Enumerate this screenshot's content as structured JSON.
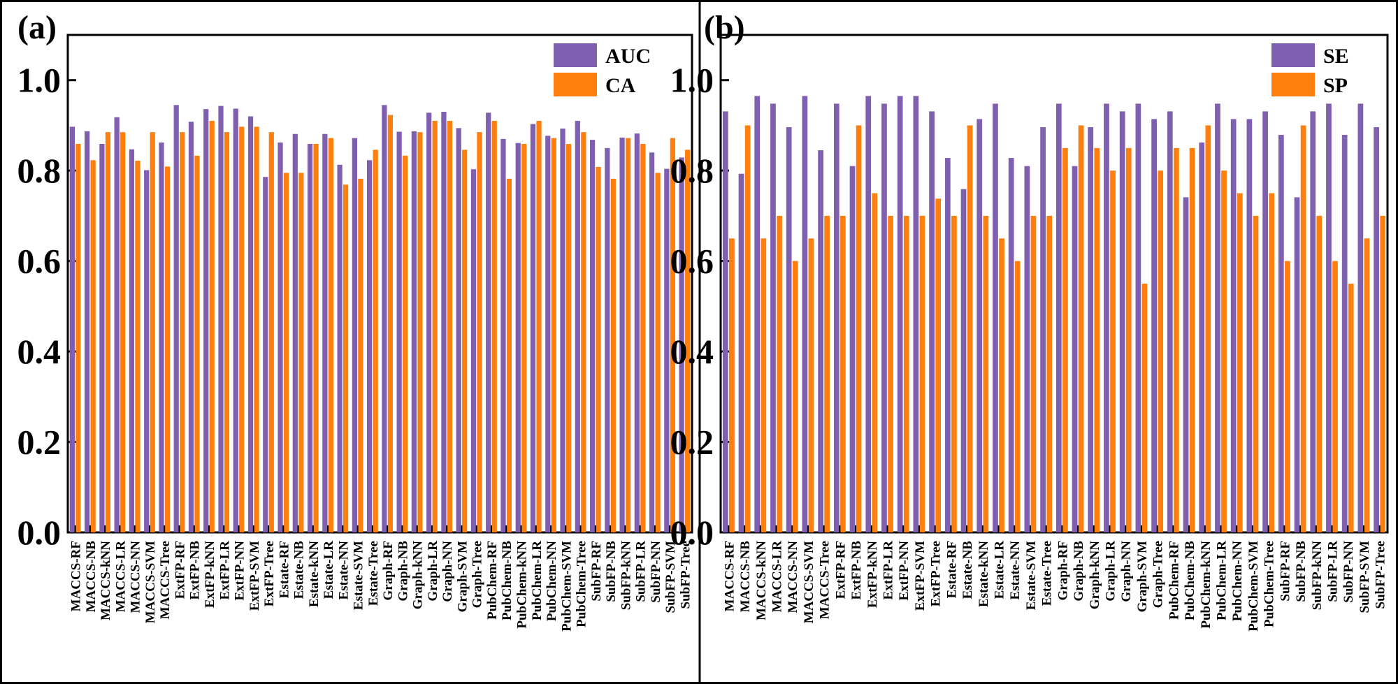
{
  "colors": {
    "series1": "#7f5fb0",
    "series2": "#ff7f0e",
    "axis": "#000000",
    "background": "#ffffff"
  },
  "chart_data": [
    {
      "panel_label": "(a)",
      "type": "bar",
      "title": "",
      "xlabel": "",
      "ylabel": "",
      "ylim": [
        0,
        1.1
      ],
      "yticks": [
        "0.0",
        "0.2",
        "0.4",
        "0.6",
        "0.8",
        "1.0"
      ],
      "yticks_values": [
        0,
        0.2,
        0.4,
        0.6,
        0.8,
        1.0
      ],
      "legend_position": "top-right",
      "categories": [
        "MACCS-RF",
        "MACCS-NB",
        "MACCS-kNN",
        "MACCS-LR",
        "MACCS-NN",
        "MACCS-SVM",
        "MACCS-Tree",
        "ExtFP-RF",
        "ExtFP-NB",
        "ExtFP-kNN",
        "ExtFP-LR",
        "ExtFP-NN",
        "ExtFP-SVM",
        "ExtFP-Tree",
        "Estate-RF",
        "Estate-NB",
        "Estate-kNN",
        "Estate-LR",
        "Estate-NN",
        "Estate-SVM",
        "Estate-Tree",
        "Graph-RF",
        "Graph-NB",
        "Graph-kNN",
        "Graph-LR",
        "Graph-NN",
        "Graph-SVM",
        "Graph-Tree",
        "PubChem-RF",
        "PubChem-NB",
        "PubChem-kNN",
        "PubChem-LR",
        "PubChem-NN",
        "PubChem-SVM",
        "PubChem-Tree",
        "SubFP-RF",
        "SubFP-NB",
        "SubFP-kNN",
        "SubFP-LR",
        "SubFP-NN",
        "SubFP-SVM",
        "SubFP-Tree"
      ],
      "series": [
        {
          "name": "AUC",
          "values": [
            0.897,
            0.887,
            0.859,
            0.918,
            0.847,
            0.801,
            0.862,
            0.945,
            0.908,
            0.936,
            0.943,
            0.937,
            0.92,
            0.786,
            0.862,
            0.881,
            0.859,
            0.881,
            0.813,
            0.872,
            0.823,
            0.945,
            0.886,
            0.887,
            0.928,
            0.93,
            0.894,
            0.803,
            0.928,
            0.87,
            0.861,
            0.903,
            0.877,
            0.893,
            0.91,
            0.868,
            0.85,
            0.873,
            0.882,
            0.84,
            0.804,
            0.829
          ]
        },
        {
          "name": "CA",
          "values": [
            0.859,
            0.823,
            0.885,
            0.885,
            0.822,
            0.885,
            0.809,
            0.885,
            0.833,
            0.91,
            0.885,
            0.897,
            0.897,
            0.885,
            0.795,
            0.795,
            0.859,
            0.872,
            0.769,
            0.782,
            0.846,
            0.923,
            0.833,
            0.885,
            0.91,
            0.91,
            0.846,
            0.885,
            0.91,
            0.782,
            0.859,
            0.91,
            0.872,
            0.859,
            0.885,
            0.808,
            0.782,
            0.872,
            0.859,
            0.795,
            0.872,
            0.846
          ]
        }
      ]
    },
    {
      "panel_label": "(b)",
      "type": "bar",
      "title": "",
      "xlabel": "",
      "ylabel": "",
      "ylim": [
        0,
        1.1
      ],
      "yticks": [
        "0.0",
        "0.2",
        "0.4",
        "0.6",
        "0.8",
        "1.0"
      ],
      "yticks_values": [
        0,
        0.2,
        0.4,
        0.6,
        0.8,
        1.0
      ],
      "legend_position": "top-right",
      "categories": [
        "MACCS-RF",
        "MACCS-NB",
        "MACCS-kNN",
        "MACCS-LR",
        "MACCS-NN",
        "MACCS-SVM",
        "MACCS-Tree",
        "ExtFP-RF",
        "ExtFP-NB",
        "ExtFP-kNN",
        "ExtFP-LR",
        "ExtFP-NN",
        "ExtFP-SVM",
        "ExtFP-Tree",
        "Estate-RF",
        "Estate-NB",
        "Estate-kNN",
        "Estate-LR",
        "Estate-NN",
        "Estate-SVM",
        "Estate-Tree",
        "Graph-RF",
        "Graph-NB",
        "Graph-kNN",
        "Graph-LR",
        "Graph-NN",
        "Graph-SVM",
        "Graph-Tree",
        "PubChem-RF",
        "PubChem-NB",
        "PubChem-kNN",
        "PubChem-LR",
        "PubChem-NN",
        "PubChem-SVM",
        "PubChem-Tree",
        "SubFP-RF",
        "SubFP-NB",
        "SubFP-kNN",
        "SubFP-LR",
        "SubFP-NN",
        "SubFP-SVM",
        "SubFP-Tree"
      ],
      "series": [
        {
          "name": "SE",
          "values": [
            0.931,
            0.793,
            0.965,
            0.948,
            0.896,
            0.965,
            0.845,
            0.948,
            0.81,
            0.965,
            0.948,
            0.965,
            0.965,
            0.931,
            0.828,
            0.759,
            0.914,
            0.948,
            0.828,
            0.81,
            0.896,
            0.948,
            0.81,
            0.896,
            0.948,
            0.931,
            0.948,
            0.914,
            0.931,
            0.741,
            0.862,
            0.948,
            0.914,
            0.914,
            0.931,
            0.879,
            0.741,
            0.931,
            0.948,
            0.879,
            0.948,
            0.896
          ]
        },
        {
          "name": "SP",
          "values": [
            0.65,
            0.9,
            0.65,
            0.7,
            0.6,
            0.65,
            0.7,
            0.7,
            0.9,
            0.75,
            0.7,
            0.7,
            0.7,
            0.738,
            0.7,
            0.9,
            0.7,
            0.65,
            0.6,
            0.7,
            0.7,
            0.85,
            0.9,
            0.85,
            0.8,
            0.85,
            0.55,
            0.8,
            0.85,
            0.85,
            0.9,
            0.8,
            0.75,
            0.7,
            0.75,
            0.6,
            0.9,
            0.7,
            0.6,
            0.55,
            0.65,
            0.7
          ]
        }
      ]
    }
  ]
}
